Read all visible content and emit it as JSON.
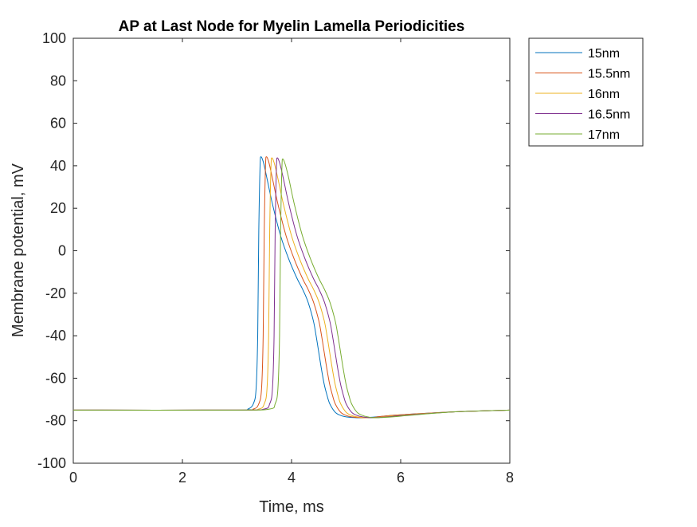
{
  "chart_data": {
    "type": "line",
    "title": "AP at Last Node for Myelin Lamella Periodicities",
    "xlabel": "Time, ms",
    "ylabel": "Membrane potential, mV",
    "xlim": [
      0,
      8
    ],
    "ylim": [
      -100,
      100
    ],
    "xticks": [
      0,
      2,
      4,
      6,
      8
    ],
    "yticks": [
      -100,
      -80,
      -60,
      -40,
      -20,
      0,
      20,
      40,
      60,
      80,
      100
    ],
    "xtick_labels": [
      "0",
      "2",
      "4",
      "6",
      "8"
    ],
    "ytick_labels": [
      "-100",
      "-80",
      "-60",
      "-40",
      "-20",
      "0",
      "20",
      "40",
      "60",
      "80",
      "100"
    ],
    "grid": false,
    "legend_position": "outside-top-right",
    "series": [
      {
        "name": "15nm",
        "color": "#0072BD",
        "x": [
          0,
          3.0,
          3.2,
          3.3,
          3.35,
          3.38,
          3.4,
          3.43,
          3.48,
          3.55,
          3.65,
          3.8,
          3.95,
          4.1,
          4.2,
          4.3,
          4.4,
          4.45,
          4.5,
          4.55,
          4.6,
          4.65,
          4.7,
          4.8,
          4.9,
          5.0,
          5.2,
          5.4,
          5.6,
          6.0,
          7.0,
          8.0
        ],
        "y": [
          -75,
          -75,
          -74.5,
          -72,
          -65,
          -40,
          10,
          44,
          42,
          34,
          22,
          7,
          -4,
          -13,
          -18,
          -24,
          -33,
          -40,
          -48,
          -56,
          -63,
          -68,
          -72,
          -76,
          -77.5,
          -78.2,
          -78.6,
          -78.5,
          -78.1,
          -77.2,
          -75.8,
          -75.0
        ]
      },
      {
        "name": "15.5nm",
        "color": "#D95319",
        "x": [
          0,
          3.0,
          3.3,
          3.4,
          3.45,
          3.48,
          3.5,
          3.53,
          3.58,
          3.65,
          3.75,
          3.9,
          4.05,
          4.2,
          4.3,
          4.4,
          4.5,
          4.55,
          4.6,
          4.65,
          4.7,
          4.75,
          4.8,
          4.9,
          5.0,
          5.1,
          5.3,
          5.5,
          5.6,
          6.0,
          7.0,
          8.0
        ],
        "y": [
          -75,
          -75,
          -74.5,
          -72,
          -65,
          -40,
          10,
          44,
          42,
          34,
          22,
          7,
          -4,
          -13,
          -18,
          -24,
          -33,
          -40,
          -48,
          -56,
          -63,
          -68,
          -72,
          -76,
          -77.5,
          -78.2,
          -78.6,
          -78.5,
          -78.1,
          -77.2,
          -75.8,
          -75.0
        ]
      },
      {
        "name": "16nm",
        "color": "#EDB120",
        "x": [
          0,
          3.0,
          3.4,
          3.5,
          3.55,
          3.58,
          3.6,
          3.63,
          3.68,
          3.75,
          3.85,
          4.0,
          4.15,
          4.3,
          4.4,
          4.5,
          4.6,
          4.65,
          4.7,
          4.75,
          4.8,
          4.85,
          4.9,
          5.0,
          5.1,
          5.2,
          5.4,
          5.6,
          5.7,
          6.0,
          7.0,
          8.0
        ],
        "y": [
          -75,
          -75,
          -74.5,
          -72,
          -65,
          -40,
          10,
          43.5,
          41.5,
          34,
          22,
          7,
          -4,
          -13,
          -18,
          -24,
          -33,
          -40,
          -48,
          -56,
          -63,
          -68,
          -72,
          -76,
          -77.5,
          -78.2,
          -78.6,
          -78.5,
          -78.1,
          -77.4,
          -75.8,
          -75.0
        ]
      },
      {
        "name": "16.5nm",
        "color": "#7E2F8E",
        "x": [
          0,
          3.0,
          3.5,
          3.6,
          3.65,
          3.68,
          3.7,
          3.73,
          3.78,
          3.85,
          3.95,
          4.1,
          4.25,
          4.4,
          4.5,
          4.6,
          4.7,
          4.75,
          4.8,
          4.85,
          4.9,
          4.95,
          5.0,
          5.1,
          5.2,
          5.3,
          5.45,
          5.6,
          5.8,
          6.0,
          7.0,
          8.0
        ],
        "y": [
          -75,
          -75,
          -74.5,
          -72,
          -65,
          -40,
          10,
          43.5,
          41.5,
          34,
          22,
          7,
          -4,
          -13,
          -18,
          -24,
          -33,
          -40,
          -48,
          -56,
          -63,
          -68,
          -72,
          -76,
          -77.5,
          -78.2,
          -78.6,
          -78.5,
          -78.1,
          -77.6,
          -75.8,
          -75.0
        ]
      },
      {
        "name": "17nm",
        "color": "#77AC30",
        "x": [
          0,
          3.0,
          3.6,
          3.7,
          3.75,
          3.78,
          3.8,
          3.83,
          3.88,
          3.95,
          4.05,
          4.2,
          4.35,
          4.5,
          4.6,
          4.7,
          4.8,
          4.85,
          4.9,
          4.95,
          5.0,
          5.05,
          5.1,
          5.2,
          5.3,
          5.4,
          5.5,
          5.65,
          5.9,
          6.2,
          7.0,
          8.0
        ],
        "y": [
          -75,
          -75,
          -74.5,
          -72,
          -65,
          -40,
          10,
          43,
          41,
          34,
          22,
          7,
          -4,
          -13,
          -18,
          -24,
          -33,
          -40,
          -48,
          -56,
          -63,
          -68,
          -72,
          -76,
          -77.5,
          -78.2,
          -78.6,
          -78.5,
          -78.1,
          -77.4,
          -75.8,
          -75.0
        ]
      }
    ]
  }
}
